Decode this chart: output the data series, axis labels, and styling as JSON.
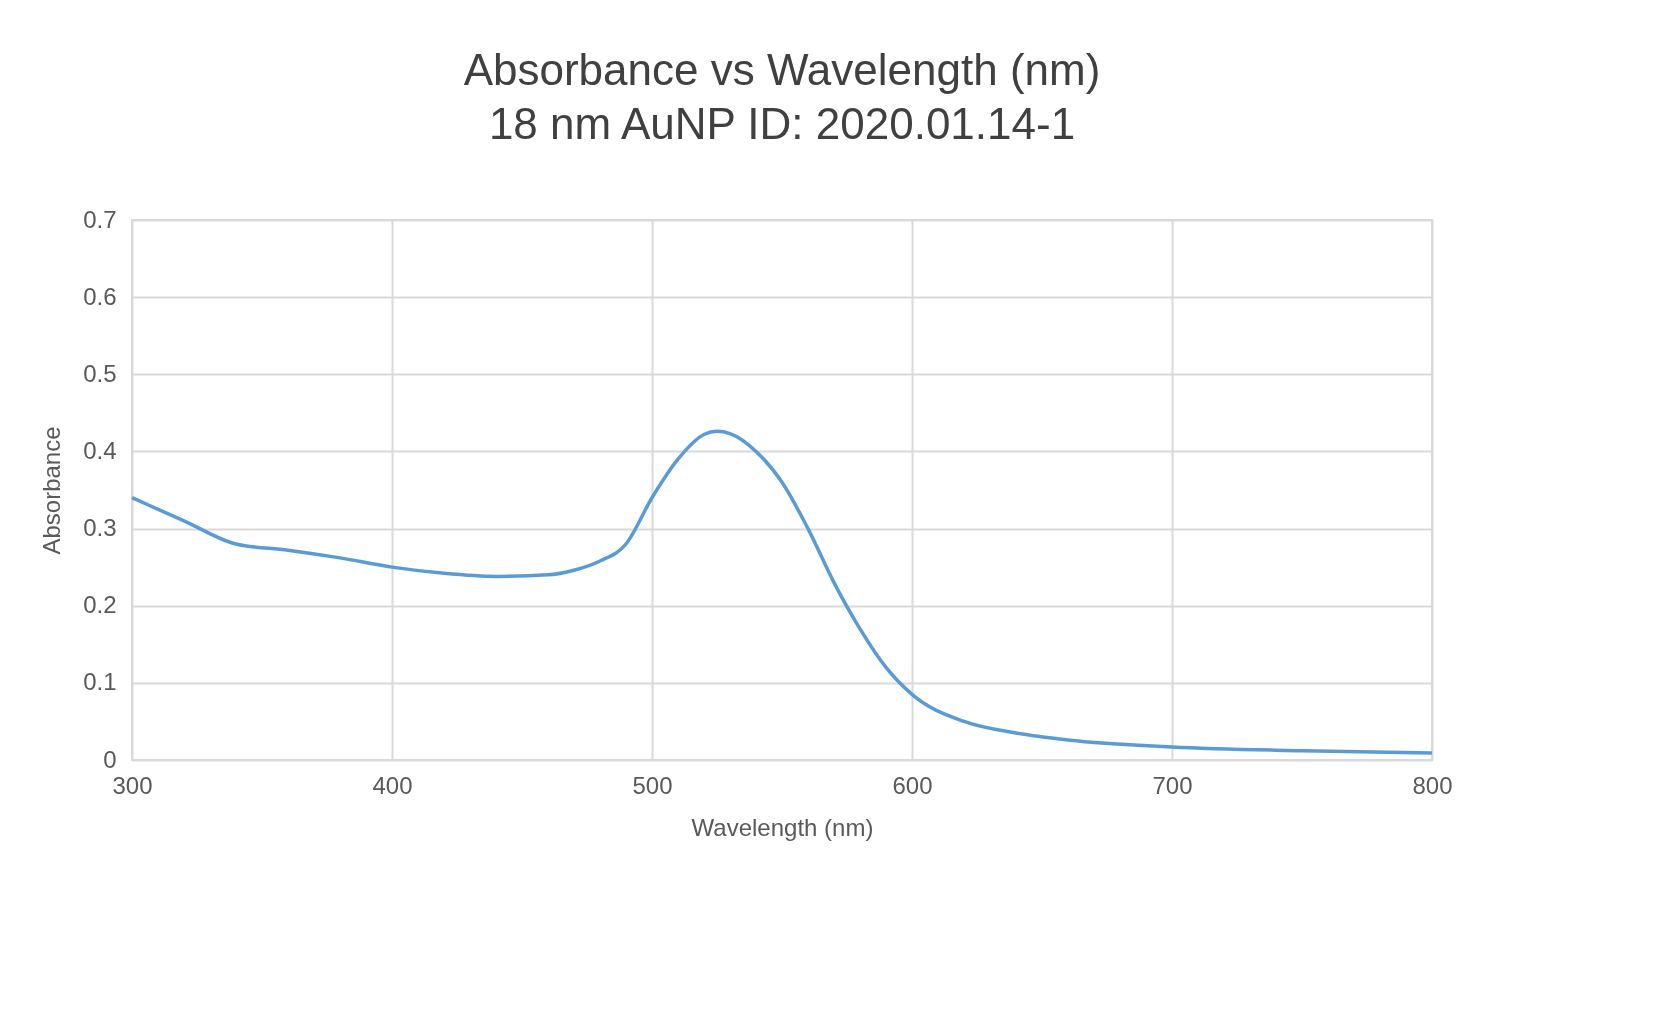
{
  "chart_data": {
    "type": "line",
    "title": "Absorbance vs Wavelength (nm)",
    "subtitle": "18 nm AuNP ID: 2020.01.14-1",
    "xlabel": "Wavelength (nm)",
    "ylabel": "Absorbance",
    "x": [
      300,
      320,
      340,
      360,
      380,
      400,
      420,
      440,
      460,
      470,
      480,
      490,
      500,
      510,
      520,
      525,
      530,
      540,
      550,
      560,
      570,
      580,
      590,
      600,
      620,
      640,
      660,
      700,
      750,
      800
    ],
    "series": [
      {
        "color": "#5b9bd5",
        "values": [
          0.34,
          0.31,
          0.28,
          0.272,
          0.262,
          0.25,
          0.242,
          0.238,
          0.24,
          0.246,
          0.258,
          0.28,
          0.34,
          0.39,
          0.422,
          0.426,
          0.423,
          0.4,
          0.36,
          0.3,
          0.23,
          0.17,
          0.12,
          0.085,
          0.05,
          0.035,
          0.026,
          0.017,
          0.012,
          0.009
        ]
      }
    ],
    "xlim": [
      300,
      800
    ],
    "xticks": [
      300,
      400,
      500,
      600,
      700,
      800
    ],
    "ylim": [
      0,
      0.7
    ],
    "yticks": [
      0,
      0.1,
      0.2,
      0.3,
      0.4,
      0.5,
      0.6,
      0.7
    ],
    "grid": true,
    "marker": "none",
    "line_style": "solid"
  }
}
